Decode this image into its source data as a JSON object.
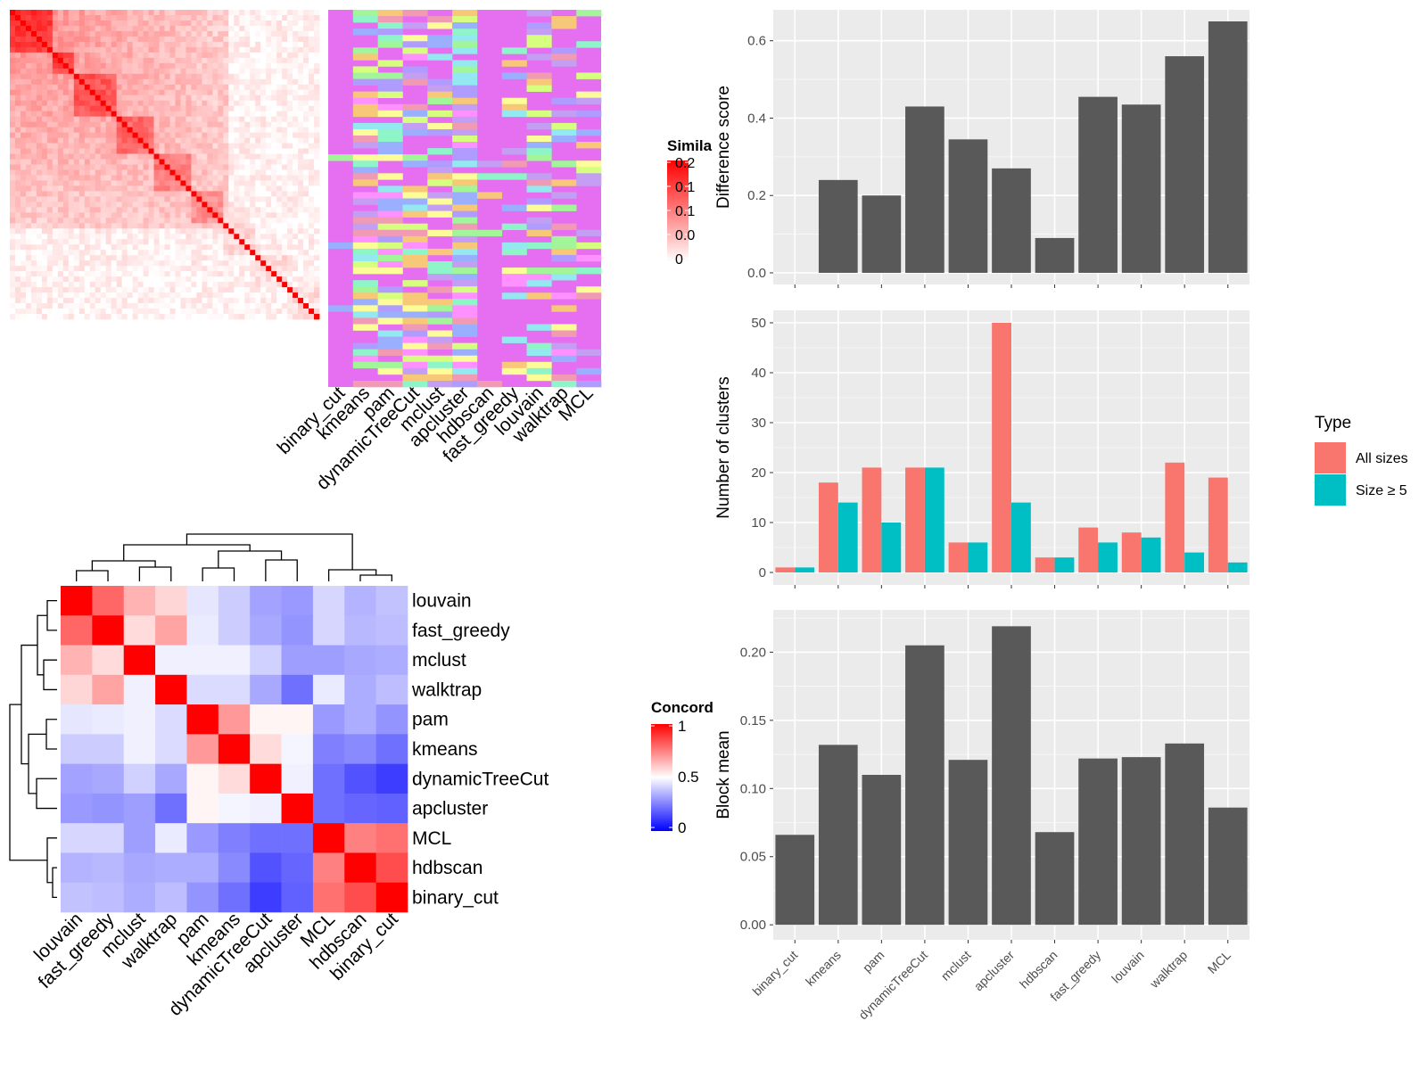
{
  "figure": {
    "methods_heatmap_order": [
      "binary_cut",
      "kmeans",
      "pam",
      "dynamicTreeCut",
      "mclust",
      "apcluster",
      "hdbscan",
      "fast_greedy",
      "louvain",
      "walktrap",
      "MCL"
    ],
    "similarity_legend": {
      "title": "Simila",
      "ticks": [
        "0.2",
        "0.1",
        "0.1",
        "0.0",
        "0"
      ],
      "color_high": "#ff0000",
      "color_low": "#ffffff"
    },
    "concordance_legend": {
      "title": "Concord",
      "ticks": [
        "1",
        "0.5",
        "0"
      ],
      "color_high": "#ff0000",
      "color_mid": "#ffffff",
      "color_low": "#0000ff"
    },
    "type_legend": {
      "title": "Type",
      "entries": [
        {
          "label": "All sizes",
          "color": "#f8766d"
        },
        {
          "label": "Size ≥ 5",
          "color": "#00bfc4"
        }
      ]
    }
  },
  "chart_data": [
    {
      "type": "heatmap",
      "title": "",
      "labels": [
        "louvain",
        "fast_greedy",
        "mclust",
        "walktrap",
        "pam",
        "kmeans",
        "dynamicTreeCut",
        "apcluster",
        "MCL",
        "hdbscan",
        "binary_cut"
      ],
      "legend_title": "Concord",
      "range": [
        0,
        1
      ],
      "values": [
        [
          1.0,
          0.8,
          0.65,
          0.58,
          0.45,
          0.4,
          0.32,
          0.3,
          0.42,
          0.35,
          0.38
        ],
        [
          0.8,
          1.0,
          0.57,
          0.68,
          0.46,
          0.4,
          0.33,
          0.29,
          0.42,
          0.36,
          0.37
        ],
        [
          0.65,
          0.57,
          1.0,
          0.47,
          0.47,
          0.47,
          0.41,
          0.31,
          0.31,
          0.33,
          0.34
        ],
        [
          0.58,
          0.68,
          0.47,
          1.0,
          0.43,
          0.43,
          0.33,
          0.22,
          0.46,
          0.34,
          0.37
        ],
        [
          0.45,
          0.46,
          0.47,
          0.43,
          1.0,
          0.7,
          0.52,
          0.52,
          0.3,
          0.34,
          0.29
        ],
        [
          0.4,
          0.4,
          0.47,
          0.43,
          0.7,
          1.0,
          0.57,
          0.48,
          0.25,
          0.27,
          0.22
        ],
        [
          0.32,
          0.33,
          0.41,
          0.33,
          0.52,
          0.57,
          1.0,
          0.47,
          0.22,
          0.16,
          0.12
        ],
        [
          0.3,
          0.29,
          0.31,
          0.22,
          0.52,
          0.48,
          0.47,
          1.0,
          0.22,
          0.2,
          0.19
        ],
        [
          0.42,
          0.42,
          0.31,
          0.46,
          0.3,
          0.25,
          0.22,
          0.22,
          1.0,
          0.75,
          0.78
        ],
        [
          0.35,
          0.36,
          0.33,
          0.34,
          0.34,
          0.27,
          0.16,
          0.2,
          0.75,
          1.0,
          0.85
        ],
        [
          0.38,
          0.37,
          0.34,
          0.37,
          0.29,
          0.22,
          0.12,
          0.19,
          0.78,
          0.85,
          1.0
        ]
      ]
    },
    {
      "type": "bar",
      "categories": [
        "binary_cut",
        "kmeans",
        "pam",
        "dynamicTreeCut",
        "mclust",
        "apcluster",
        "hdbscan",
        "fast_greedy",
        "louvain",
        "walktrap",
        "MCL"
      ],
      "values": [
        0.0,
        0.24,
        0.2,
        0.43,
        0.345,
        0.27,
        0.09,
        0.455,
        0.435,
        0.56,
        0.65
      ],
      "xlabel": "",
      "ylabel": "Difference score",
      "ylim": [
        -0.03,
        0.68
      ],
      "yticks": [
        "0.0",
        "0.2",
        "0.4",
        "0.6"
      ],
      "color": "#595959"
    },
    {
      "type": "bar",
      "categories": [
        "binary_cut",
        "kmeans",
        "pam",
        "dynamicTreeCut",
        "mclust",
        "apcluster",
        "hdbscan",
        "fast_greedy",
        "louvain",
        "walktrap",
        "MCL"
      ],
      "series": [
        {
          "name": "All sizes",
          "values": [
            1,
            18,
            21,
            21,
            6,
            50,
            3,
            9,
            8,
            22,
            19
          ]
        },
        {
          "name": "Size ≥ 5",
          "values": [
            1,
            14,
            10,
            21,
            6,
            14,
            3,
            6,
            7,
            4,
            2
          ]
        }
      ],
      "xlabel": "",
      "ylabel": "Number of clusters",
      "ylim": [
        -2.5,
        52.5
      ],
      "yticks": [
        "0",
        "10",
        "20",
        "30",
        "40",
        "50"
      ]
    },
    {
      "type": "bar",
      "categories": [
        "binary_cut",
        "kmeans",
        "pam",
        "dynamicTreeCut",
        "mclust",
        "apcluster",
        "hdbscan",
        "fast_greedy",
        "louvain",
        "walktrap",
        "MCL"
      ],
      "values": [
        0.066,
        0.132,
        0.11,
        0.205,
        0.121,
        0.219,
        0.068,
        0.122,
        0.123,
        0.133,
        0.086
      ],
      "xlabel": "",
      "ylabel": "Block mean",
      "ylim": [
        -0.011,
        0.231
      ],
      "yticks": [
        "0.00",
        "0.05",
        "0.10",
        "0.15",
        "0.20"
      ],
      "color": "#595959"
    }
  ]
}
